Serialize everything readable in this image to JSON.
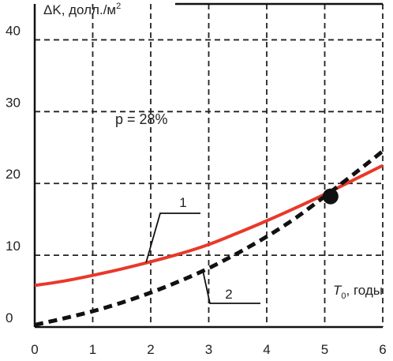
{
  "chart_data": {
    "type": "line",
    "ylabel_text": "ΔK, долл./м",
    "ylabel_sup": "2",
    "xlabel_var": "T",
    "xlabel_sub": "0",
    "xlabel_unit": ", годы",
    "annotation": "p = 28%",
    "xticks": [
      "0",
      "1",
      "2",
      "3",
      "4",
      "5",
      "6"
    ],
    "yticks": [
      "0",
      "10",
      "20",
      "30",
      "40"
    ],
    "xlim": [
      0,
      6
    ],
    "ylim": [
      0,
      45
    ],
    "grid": true,
    "series": [
      {
        "name": "1",
        "color": "#e8392a",
        "style": "solid",
        "x": [
          0,
          0.5,
          1,
          1.5,
          2,
          2.5,
          3,
          3.5,
          4,
          4.5,
          5,
          5.5,
          6
        ],
        "y": [
          5.8,
          6.4,
          7.2,
          8.1,
          9.1,
          10.2,
          11.5,
          13.1,
          14.8,
          16.6,
          18.5,
          20.5,
          22.5
        ]
      },
      {
        "name": "2",
        "color": "#111111",
        "style": "dashed",
        "x": [
          0,
          0.5,
          1,
          1.5,
          2,
          2.5,
          3,
          3.5,
          4,
          4.5,
          5,
          5.5,
          6
        ],
        "y": [
          0.3,
          1.2,
          2.2,
          3.4,
          4.8,
          6.4,
          8.2,
          10.3,
          12.6,
          15.2,
          18.2,
          21.3,
          24.5
        ]
      }
    ],
    "intersection": {
      "x": 5.1,
      "y": 18.2
    }
  }
}
